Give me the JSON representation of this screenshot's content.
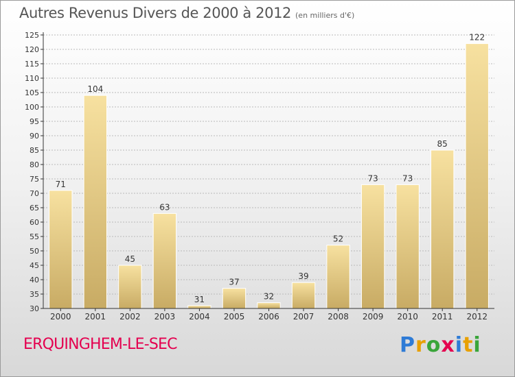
{
  "title": "Autres Revenus Divers de 2000 à 2012",
  "subtitle": "(en milliers d'€)",
  "commune": "ERQUINGHEM-LE-SEC",
  "logo": {
    "text": "Proxiti",
    "letters": [
      {
        "char": "P",
        "color": "#2e7bd6"
      },
      {
        "char": "r",
        "color": "#e8a000"
      },
      {
        "char": "o",
        "color": "#3aa53a"
      },
      {
        "char": "x",
        "color": "#e4004f"
      },
      {
        "char": "i",
        "color": "#2e7bd6"
      },
      {
        "char": "t",
        "color": "#e8a000"
      },
      {
        "char": "i",
        "color": "#3aa53a"
      }
    ]
  },
  "colors": {
    "bar_light": "#f7e1a0",
    "bar_dark": "#c8ab64",
    "axis": "#333333",
    "grid": "#b9b9b9",
    "text": "#333333",
    "commune": "#e4004f"
  },
  "chart_data": {
    "type": "bar",
    "categories": [
      "2000",
      "2001",
      "2002",
      "2003",
      "2004",
      "2005",
      "2006",
      "2007",
      "2008",
      "2009",
      "2010",
      "2011",
      "2012"
    ],
    "values": [
      71,
      104,
      45,
      63,
      31,
      37,
      32,
      39,
      52,
      73,
      73,
      85,
      122
    ],
    "data_labels": [
      "71",
      "104",
      "45",
      "63",
      "31",
      "37",
      "32",
      "39",
      "52",
      "73",
      "73",
      "85",
      "122"
    ],
    "ylim": [
      30,
      125
    ],
    "yticks": [
      30,
      35,
      40,
      45,
      50,
      55,
      60,
      65,
      70,
      75,
      80,
      85,
      90,
      95,
      100,
      105,
      110,
      115,
      120,
      125
    ],
    "grid": true,
    "xlabel": "",
    "ylabel": ""
  }
}
